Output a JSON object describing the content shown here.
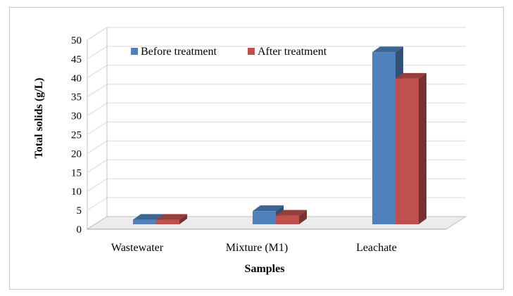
{
  "chart_data": {
    "type": "bar",
    "style": "3d-clustered-column",
    "title": "",
    "xlabel": "Samples",
    "ylabel": "Total solids (g/L)",
    "ylim": [
      0,
      50
    ],
    "yticks": [
      0,
      5,
      10,
      15,
      20,
      25,
      30,
      35,
      40,
      45,
      50
    ],
    "categories": [
      "Wastewater",
      "Mixture (M1)",
      "Leachate"
    ],
    "series": [
      {
        "name": "Before treatment",
        "color": "#4F81BD",
        "values": [
          1.2,
          3.5,
          45.5
        ]
      },
      {
        "name": "After treatment",
        "color": "#C0504D",
        "values": [
          1.2,
          2.3,
          38.5
        ]
      }
    ],
    "grid": true,
    "legend_position": "top"
  }
}
